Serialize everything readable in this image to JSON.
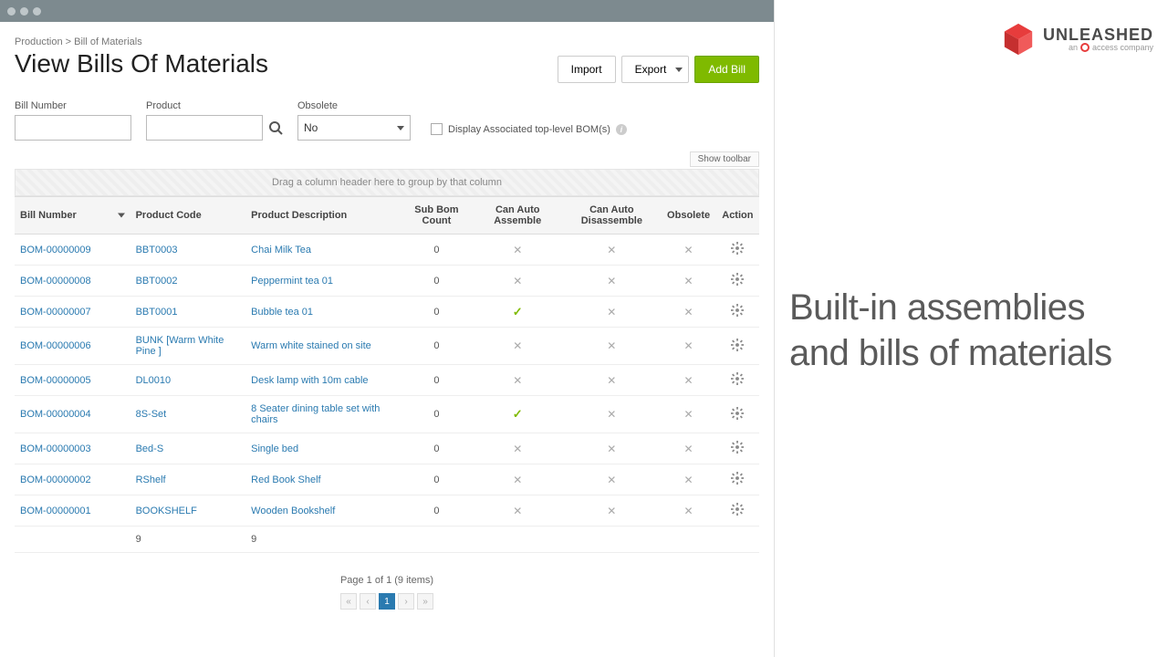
{
  "breadcrumb": "Production > Bill of Materials",
  "page_title": "View Bills Of Materials",
  "actions": {
    "import": "Import",
    "export": "Export",
    "add_bill": "Add Bill"
  },
  "filters": {
    "bill_number_label": "Bill Number",
    "bill_number_value": "",
    "product_label": "Product",
    "product_value": "",
    "obsolete_label": "Obsolete",
    "obsolete_value": "No",
    "display_assoc_label": "Display Associated top-level BOM(s)"
  },
  "show_toolbar_label": "Show toolbar",
  "group_drop_text": "Drag a column header here to group by that column",
  "columns": {
    "bill_number": "Bill Number",
    "product_code": "Product Code",
    "product_description": "Product Description",
    "sub_bom_count": "Sub Bom Count",
    "can_auto_assemble": "Can Auto Assemble",
    "can_auto_disassemble": "Can Auto Disassemble",
    "obsolete": "Obsolete",
    "action": "Action"
  },
  "rows": [
    {
      "bn": "BOM-00000009",
      "pc": "BBT0003",
      "pd": "Chai Milk Tea",
      "sb": "0",
      "aa": false,
      "ad": false,
      "ob": false
    },
    {
      "bn": "BOM-00000008",
      "pc": "BBT0002",
      "pd": "Peppermint tea 01",
      "sb": "0",
      "aa": false,
      "ad": false,
      "ob": false
    },
    {
      "bn": "BOM-00000007",
      "pc": "BBT0001",
      "pd": "Bubble tea 01",
      "sb": "0",
      "aa": true,
      "ad": false,
      "ob": false
    },
    {
      "bn": "BOM-00000006",
      "pc": "BUNK [Warm White Pine ]",
      "pd": "Warm white stained on site",
      "sb": "0",
      "aa": false,
      "ad": false,
      "ob": false
    },
    {
      "bn": "BOM-00000005",
      "pc": "DL0010",
      "pd": "Desk lamp with 10m cable",
      "sb": "0",
      "aa": false,
      "ad": false,
      "ob": false
    },
    {
      "bn": "BOM-00000004",
      "pc": "8S-Set",
      "pd": "8 Seater dining table set with chairs",
      "sb": "0",
      "aa": true,
      "ad": false,
      "ob": false
    },
    {
      "bn": "BOM-00000003",
      "pc": "Bed-S",
      "pd": "Single bed",
      "sb": "0",
      "aa": false,
      "ad": false,
      "ob": false
    },
    {
      "bn": "BOM-00000002",
      "pc": "RShelf",
      "pd": "Red Book Shelf",
      "sb": "0",
      "aa": false,
      "ad": false,
      "ob": false
    },
    {
      "bn": "BOM-00000001",
      "pc": "BOOKSHELF",
      "pd": "Wooden Bookshelf",
      "sb": "0",
      "aa": false,
      "ad": false,
      "ob": false
    }
  ],
  "summary": {
    "count_pc": "9",
    "count_pd": "9"
  },
  "pagination": {
    "text": "Page 1 of 1 (9 items)",
    "current": "1"
  },
  "brand": {
    "name": "UNLEASHED",
    "sub_prefix": "an",
    "sub_company": "access company"
  },
  "headline_l1": "Built-in assemblies",
  "headline_l2": "and bills of materials",
  "colors": {
    "link": "#2a7ab0",
    "green_btn": "#7fba00",
    "brand_red": "#e73c3c",
    "check": "#7fba00",
    "cross": "#aaaaaa"
  }
}
